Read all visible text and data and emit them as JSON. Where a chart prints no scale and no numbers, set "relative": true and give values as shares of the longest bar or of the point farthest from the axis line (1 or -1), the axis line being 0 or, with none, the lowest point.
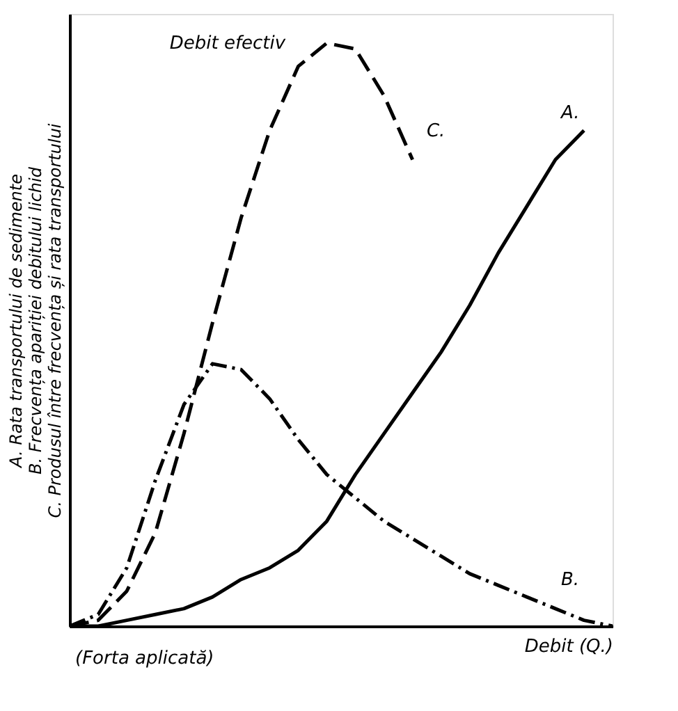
{
  "chart_data": {
    "type": "line",
    "relative": true,
    "categories": [
      null,
      null,
      null,
      null,
      null,
      null,
      null,
      null,
      null,
      null,
      null,
      null,
      null,
      null,
      null,
      null,
      null,
      null,
      null,
      null
    ],
    "xlabel": "Debit (Q.)",
    "ylabel": [
      "A. Rata transportului de sedimente",
      "B. Frecvența apariției debitului lichid",
      "C. Produsul între frecvența și rata transportului"
    ],
    "annotations": [
      "Debit efectiv",
      "(Forta aplicată)"
    ],
    "series": [
      {
        "name": "A.",
        "color": "#000000",
        "line_style": "solid",
        "values": [
          0,
          0,
          0.01,
          0.02,
          0.03,
          0.05,
          0.08,
          0.1,
          0.13,
          0.18,
          0.26,
          0.33,
          0.4,
          0.47,
          0.55,
          0.64,
          0.72,
          0.8,
          0.85,
          null
        ]
      },
      {
        "name": "B.",
        "color": "#000000",
        "line_style": "dashdot",
        "values": [
          0,
          0.02,
          0.1,
          0.25,
          0.38,
          0.45,
          0.44,
          0.39,
          0.32,
          0.26,
          0.22,
          0.18,
          0.15,
          0.12,
          0.09,
          0.07,
          0.05,
          0.03,
          0.01,
          0
        ]
      },
      {
        "name": "C.",
        "color": "#000000",
        "line_style": "dashed",
        "values": [
          0,
          0.01,
          0.06,
          0.16,
          0.33,
          0.52,
          0.7,
          0.85,
          0.96,
          1.0,
          0.99,
          0.91,
          0.8,
          null,
          null,
          null,
          null,
          null,
          null,
          null
        ]
      }
    ]
  }
}
